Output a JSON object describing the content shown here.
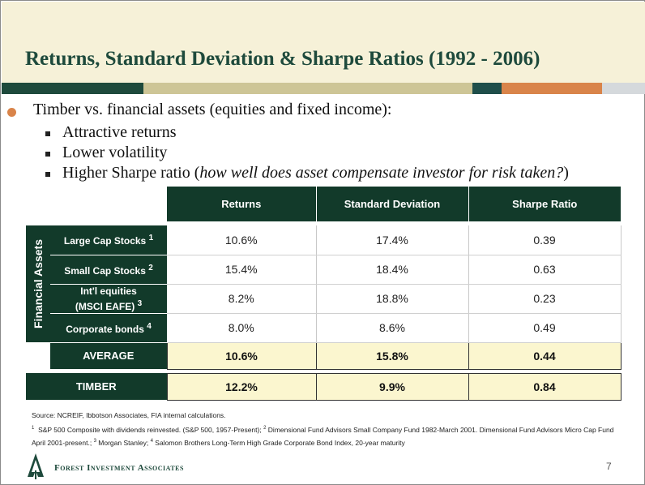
{
  "slide": {
    "title": "Returns, Standard Deviation & Sharpe Ratios (1992 - 2006)",
    "page_number": "7"
  },
  "colors": {
    "title_band": "#f6f1d8",
    "dark_green": "#123a2a",
    "bar_green": "#1e4a3c",
    "bar_tan": "#cdc596",
    "bar_teal": "#1f4e4a",
    "bar_orange": "#d9844a",
    "bar_grey": "#d5d9dc",
    "highlight": "#fbf6cf"
  },
  "bullets": {
    "main": "Timber vs. financial assets (equities and fixed income):",
    "sub1": "Attractive returns",
    "sub2": "Lower volatility",
    "sub3_plain": "Higher Sharpe ratio (",
    "sub3_italic": "how well does asset compensate investor for risk taken?",
    "sub3_close": ")"
  },
  "table": {
    "headers": [
      "Returns",
      "Standard Deviation",
      "Sharpe Ratio"
    ],
    "group_label": "Financial Assets",
    "rows": [
      {
        "label": "Large Cap Stocks",
        "sup": "1",
        "returns": "10.6%",
        "std": "17.4%",
        "sharpe": "0.39"
      },
      {
        "label": "Small Cap Stocks",
        "sup": "2",
        "returns": "15.4%",
        "std": "18.4%",
        "sharpe": "0.63"
      },
      {
        "label_line1": "Int'l equities",
        "label_line2": "(MSCI EAFE)",
        "sup": "3",
        "returns": "8.2%",
        "std": "18.8%",
        "sharpe": "0.23"
      },
      {
        "label": "Corporate bonds",
        "sup": "4",
        "returns": "8.0%",
        "std": "8.6%",
        "sharpe": "0.49"
      }
    ],
    "average": {
      "label": "AVERAGE",
      "returns": "10.6%",
      "std": "15.8%",
      "sharpe": "0.44"
    },
    "timber": {
      "label": "TIMBER",
      "returns": "12.2%",
      "std": "9.9%",
      "sharpe": "0.84"
    }
  },
  "footnotes": {
    "source": "Source: NCREIF, Ibbotson Associates, FIA internal calculations.",
    "n1_mark": "1",
    "n1": "S&P 500 Composite with dividends reinvested.  (S&P 500, 1957-Present);",
    "n2_mark": "2",
    "n2": "Dimensional Fund Advisors Small Company Fund 1982-March 2001.  Dimensional Fund Advisors Micro Cap Fund April 2001-present.;",
    "n3_mark": "3",
    "n3": "Morgan Stanley;",
    "n4_mark": "4",
    "n4": "Salomon Brothers Long-Term High Grade Corporate Bond Index, 20-year maturity"
  },
  "logo": {
    "icon": "tree-icon",
    "text": "Forest Investment Associates"
  }
}
